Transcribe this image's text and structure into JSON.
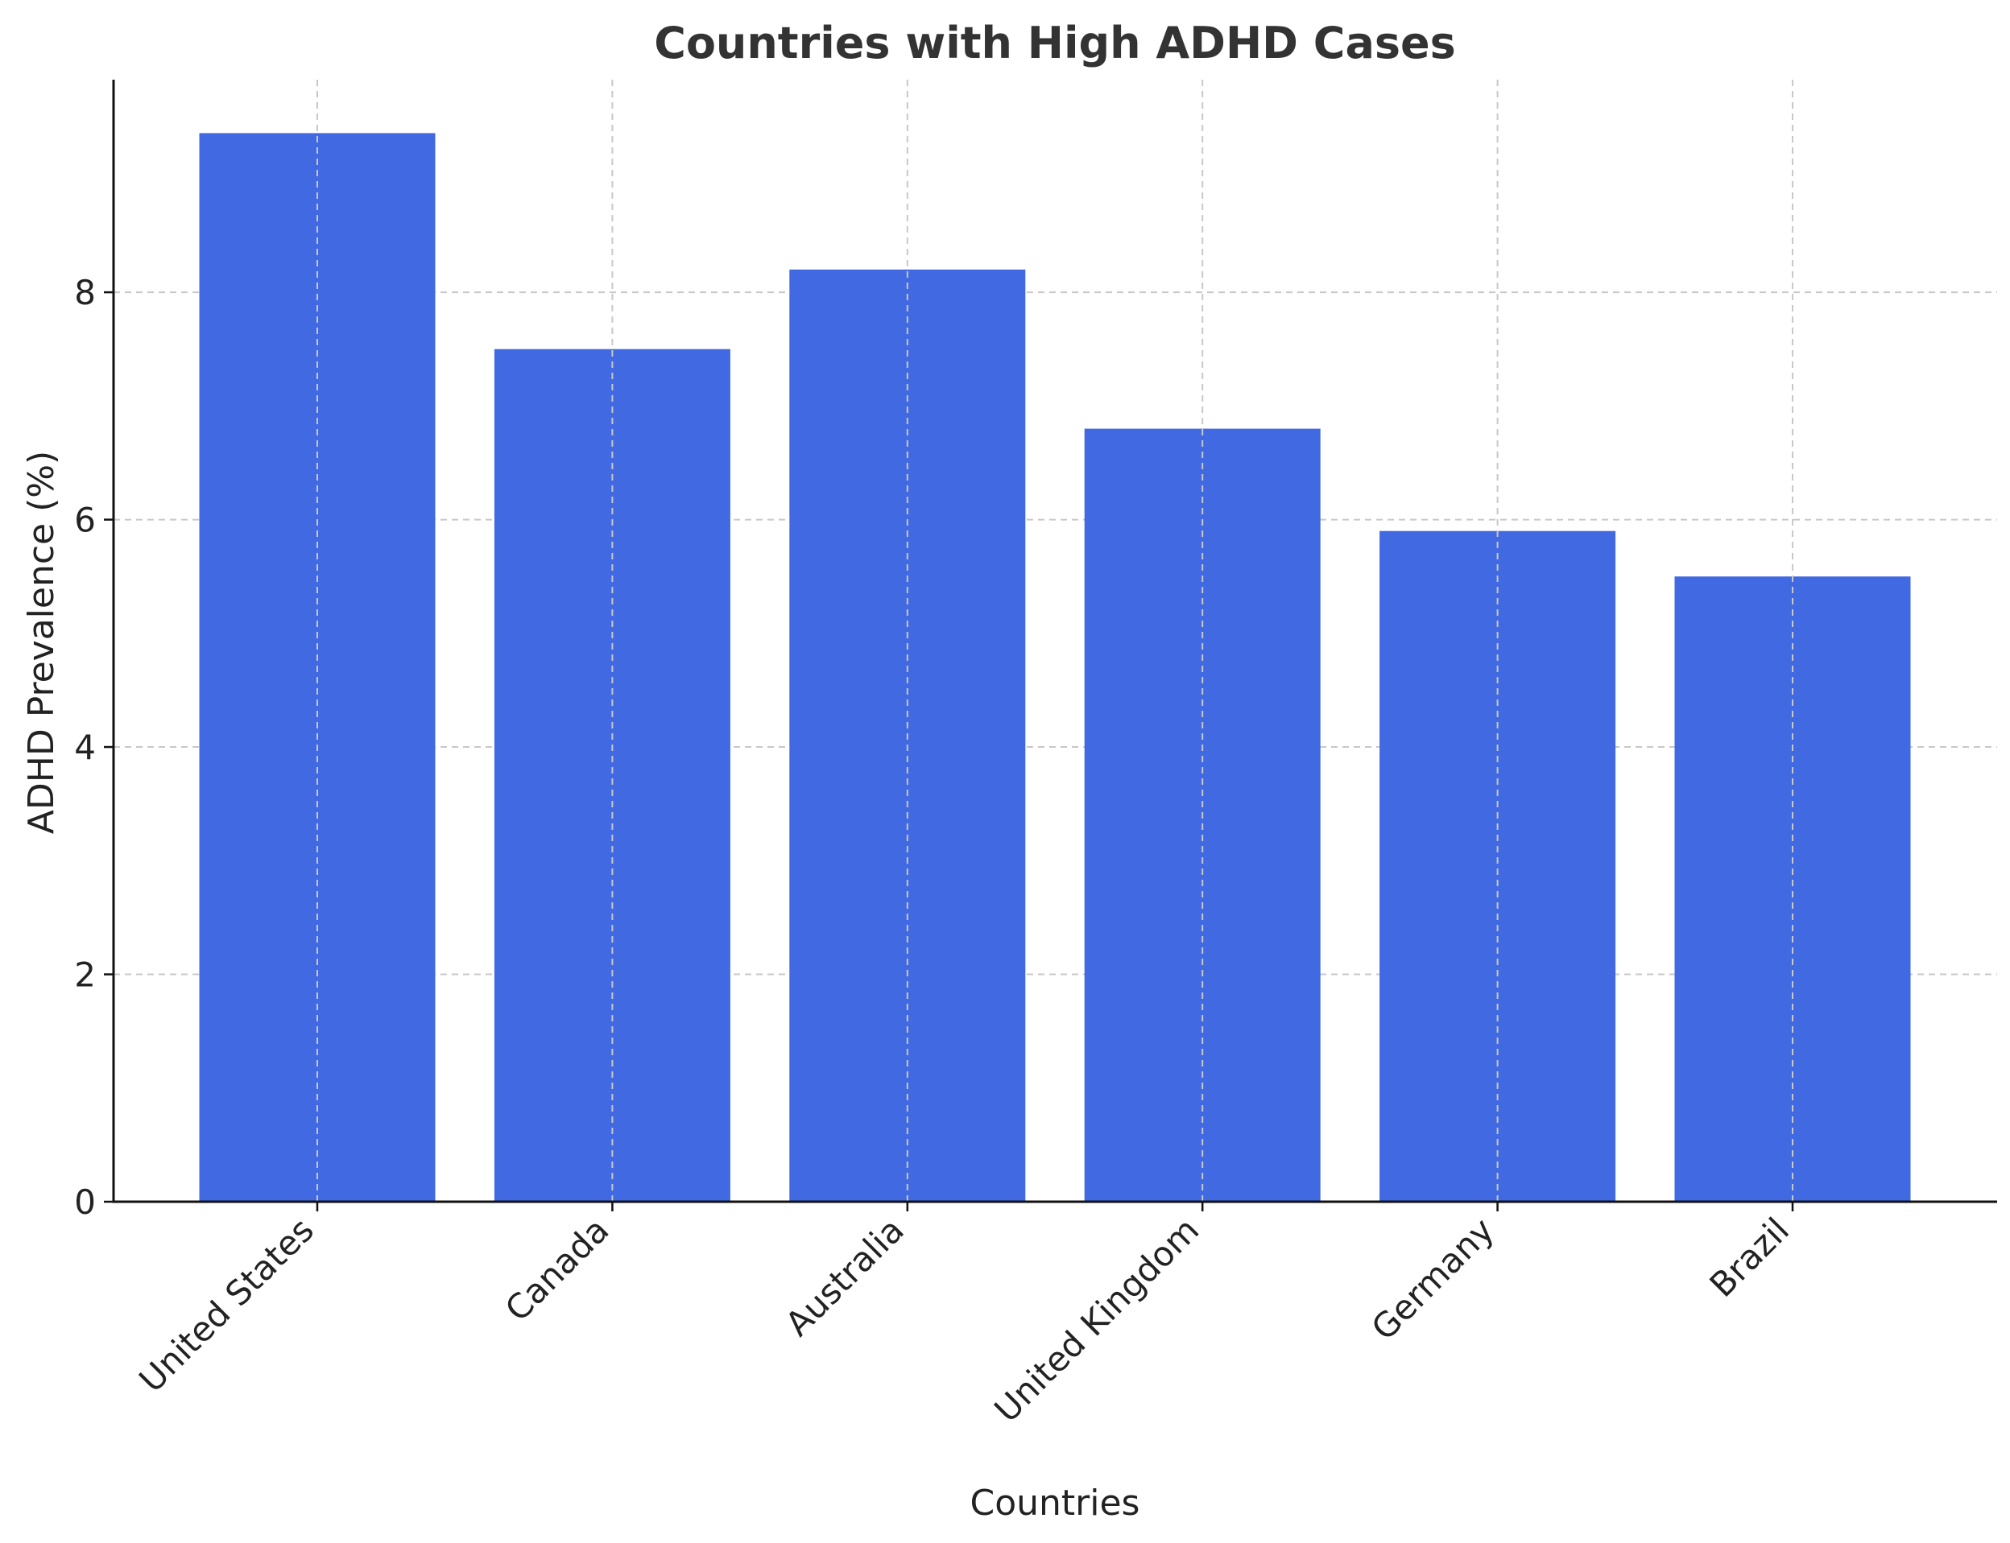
{
  "chart_data": {
    "type": "bar",
    "title": "Countries with High ADHD Cases",
    "xlabel": "Countries",
    "ylabel": "ADHD Prevalence (%)",
    "categories": [
      "United States",
      "Canada",
      "Australia",
      "United Kingdom",
      "Germany",
      "Brazil"
    ],
    "values": [
      9.4,
      7.5,
      8.2,
      6.8,
      5.9,
      5.5
    ],
    "ylim": [
      0,
      9.87
    ],
    "yticks": [
      0,
      2,
      4,
      6,
      8
    ],
    "ytick_labels": [
      "0",
      "2",
      "4",
      "6",
      "8"
    ],
    "grid": true,
    "bar_color": "#4169E1"
  }
}
